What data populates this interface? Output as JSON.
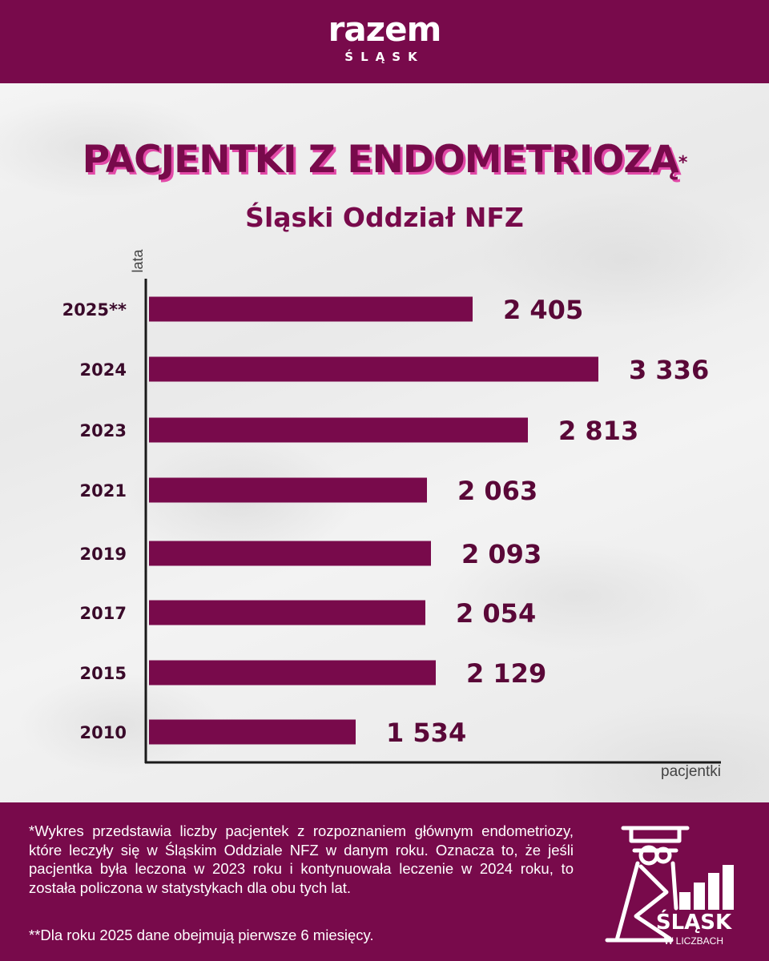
{
  "brand": {
    "name": "razem",
    "region": "ŚLĄSK"
  },
  "title": "PACJENTKI Z ENDOMETRIOZĄ",
  "title_mark": "*",
  "subtitle": "Śląski Oddział NFZ",
  "colors": {
    "brand": "#780a4b",
    "bar": "#780a4b",
    "title_shadow": "#e24aa8"
  },
  "chart_data": {
    "type": "bar",
    "orientation": "horizontal",
    "xlabel": "pacjentki",
    "ylabel": "lata",
    "categories": [
      "2025**",
      "2024",
      "2023",
      "2021",
      "2019",
      "2017",
      "2015",
      "2010"
    ],
    "values": [
      2405,
      3336,
      2813,
      2063,
      2093,
      2054,
      2129,
      1534
    ],
    "value_labels": [
      "2 405",
      "3 336",
      "2 813",
      "2 063",
      "2 093",
      "2 054",
      "2 129",
      "1 534"
    ],
    "xlim": [
      0,
      3336
    ],
    "grid": false,
    "legend": "none"
  },
  "footnote": "*Wykres przedstawia liczby pacjentek z rozpoznaniem głównym endometriozy, które leczyły się w Śląskim Oddziale NFZ w danym roku. Oznacza to, że jeśli pacjentka była leczona w 2023 roku i kontynuowała leczenie w 2024 roku, to została policzona w statystykach dla obu tych lat.",
  "footnote2": "**Dla roku 2025 dane obejmują pierwsze 6 miesięcy.",
  "logo": {
    "main": "ŚLĄSK",
    "sub": "W LICZBACH",
    "icon": "mine-tower-bar-chart-icon"
  }
}
